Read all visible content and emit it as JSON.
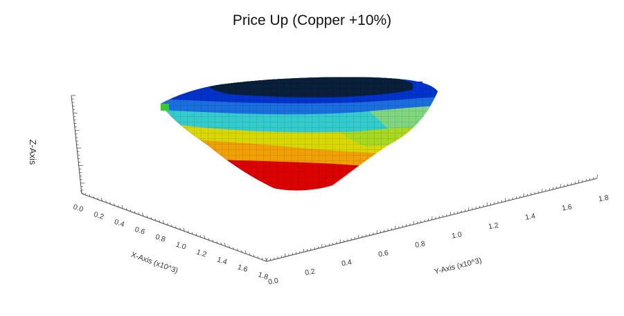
{
  "chart_data": {
    "type": "3d-voxel-pit",
    "title": "Price Up (Copper +10%)",
    "xlabel": "X-Axis (x10^3)",
    "ylabel": "Y-Axis (x10^3)",
    "zlabel": "Z-Axis",
    "x_ticks": [
      "0.0",
      "0.2",
      "0.4",
      "0.6",
      "0.8",
      "1.0",
      "1.2",
      "1.4",
      "1.6",
      "1.8"
    ],
    "y_ticks": [
      "0.0",
      "0.2",
      "0.4",
      "0.6",
      "0.8",
      "1.0",
      "1.2",
      "1.4",
      "1.6",
      "1.8"
    ],
    "xlim": [
      0,
      1.8
    ],
    "ylim": [
      0,
      1.8
    ],
    "grid": false,
    "colormap": [
      "#0a1f3a",
      "#0033cc",
      "#1a6fe0",
      "#33cccc",
      "#7fd67f",
      "#a8d820",
      "#d8d800",
      "#f0a000",
      "#e85000",
      "#dd0000"
    ]
  }
}
